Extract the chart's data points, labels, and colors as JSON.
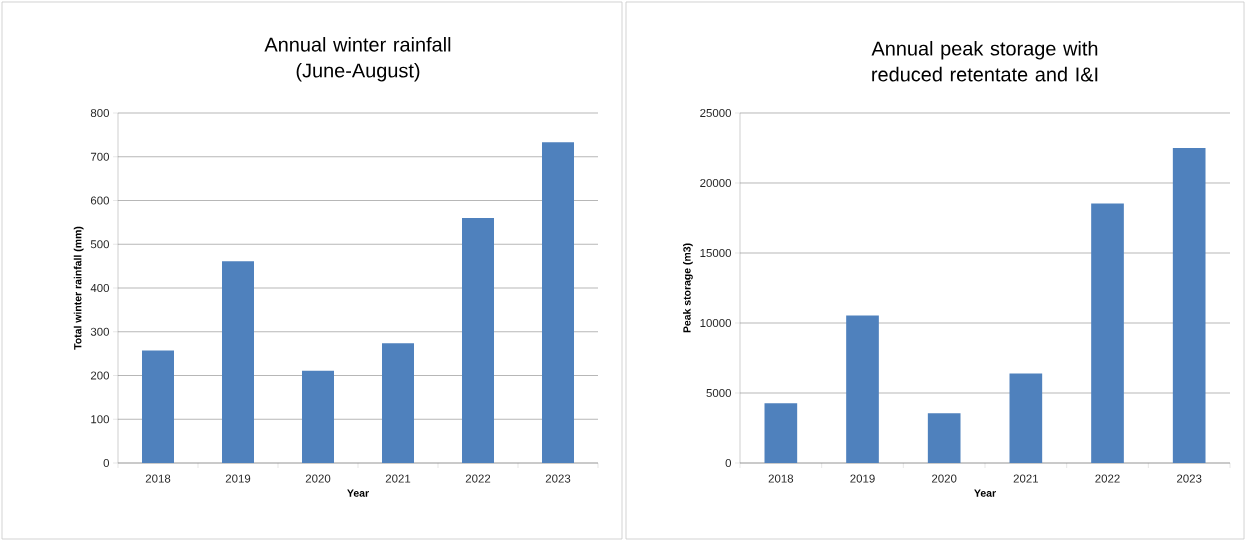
{
  "chart_data": [
    {
      "type": "bar",
      "title": "Annual winter rainfall (June-August)",
      "xlabel": "Year",
      "ylabel": "Total winter rainfall (mm)",
      "categories": [
        "2018",
        "2019",
        "2020",
        "2021",
        "2022",
        "2023"
      ],
      "values": [
        257,
        461,
        211,
        274,
        560,
        733
      ],
      "color": "#4f81bd",
      "ylim": [
        0,
        800
      ],
      "yticks": [
        0,
        100,
        200,
        300,
        400,
        500,
        600,
        700,
        800
      ],
      "grid": "y"
    },
    {
      "type": "bar",
      "title": "Annual peak storage with reduced retentate and I&I",
      "xlabel": "Year",
      "ylabel": "Peak storage (m3)",
      "categories": [
        "2018",
        "2019",
        "2020",
        "2021",
        "2022",
        "2023"
      ],
      "values": [
        4260,
        10530,
        3550,
        6390,
        18530,
        22500
      ],
      "color": "#4f81bd",
      "ylim": [
        0,
        25000
      ],
      "yticks": [
        0,
        5000,
        10000,
        15000,
        20000,
        25000
      ],
      "grid": "y"
    }
  ]
}
